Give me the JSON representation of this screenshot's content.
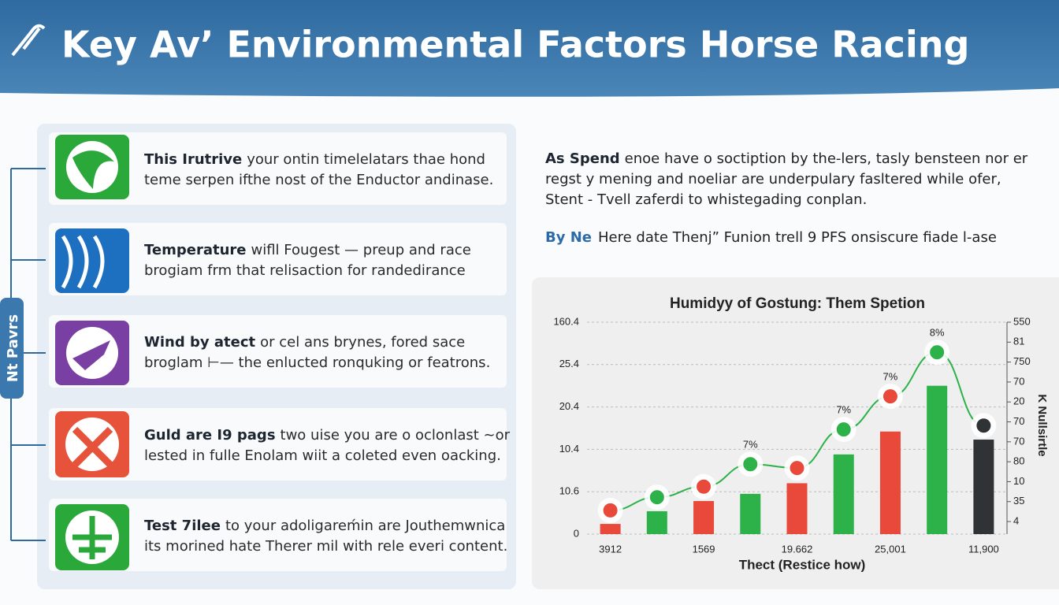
{
  "header": {
    "title": "Key Avʼ Environmental Factors Horse Racing"
  },
  "side_label": "Nt Pavrs",
  "items": [
    {
      "lead": "This Irutrive",
      "text_1": "your ontin timelelatars thae hond",
      "text_2": "teme serpen ifthe nost of the Enductor andinase."
    },
    {
      "lead": "Temperature",
      "text_1": "wifll Fougest — preup and race",
      "text_2": "brogiam frm that relisaction for randedirance"
    },
    {
      "lead": "Wind by atect",
      "text_1": "or cel ans brynes, fored sace",
      "text_2": "broglam ⊢— the enlucted ronquking or featrons."
    },
    {
      "lead": "Guld are I9 pags",
      "text_1": "two uise you are o oclonlast ~or",
      "text_2": "lested in fulle Enolam wiit a coleted even oacking."
    },
    {
      "lead": "Test 7ilee",
      "text_1": "to your adoligareḿin are Jouthemwnica",
      "text_2": "its morined hate Therer mil with rele everi content."
    }
  ],
  "intro": {
    "lead": "As Spend",
    "text_1": "enoe have o soctiption by the-lers, tasly bensteen nor er",
    "text_2": "regst y mening and noeliar are underpulary fasltered while ofer,",
    "text_3": "Stent - Tvell zaferdi to whistegading conplan."
  },
  "byline": {
    "lead": "By Ne",
    "text": "Here date  Thenj” Funion trell 9 PFS onsiscure fiade l-ase"
  },
  "chart_data": {
    "type": "bar",
    "title": "Humidyy of Gostung: Them Spetion",
    "x_label": "Thect (Restice how)",
    "y2_label": "K Nullsirtle",
    "categories": [
      "3912",
      null,
      "1569",
      null,
      "19.662",
      null,
      "25,001",
      null,
      "11,900"
    ],
    "ylim": [
      0,
      5
    ],
    "yticks": [
      0,
      {
        "value": 1,
        "label": "10.6"
      },
      {
        "value": 2,
        "label": "10.4"
      },
      {
        "value": 3,
        "label": "20.4"
      },
      {
        "value": 4,
        "label": "25.4"
      },
      {
        "value": 5,
        "label": "160.4"
      }
    ],
    "y2lim": [
      -0.63,
      10
    ],
    "y2ticks": [
      {
        "value": 0,
        "label": "4"
      },
      {
        "value": 1,
        "label": "35"
      },
      {
        "value": 2,
        "label": "10"
      },
      {
        "value": 3,
        "label": "80"
      },
      {
        "value": 4,
        "label": "70"
      },
      {
        "value": 5,
        "label": "70"
      },
      {
        "value": 6,
        "label": "20"
      },
      {
        "value": 7,
        "label": "70"
      },
      {
        "value": 8,
        "label": "750"
      },
      {
        "value": 9,
        "label": "81"
      },
      {
        "value": 10,
        "label": "550"
      }
    ],
    "grid": true,
    "bars": {
      "values": [
        0.24,
        0.54,
        0.78,
        0.95,
        1.2,
        1.88,
        2.42,
        3.5,
        2.23
      ],
      "colors": [
        "#e8493a",
        "#2db24a",
        "#e8493a",
        "#2db24a",
        "#e8493a",
        "#2db24a",
        "#e8493a",
        "#2db24a",
        "#2f3336"
      ]
    },
    "line": {
      "values": [
        0.56,
        0.87,
        1.12,
        1.65,
        1.56,
        2.47,
        3.25,
        4.29,
        2.56
      ],
      "color": "#2db24a",
      "marker_colors": [
        "#e8493a",
        "#2db24a",
        "#e8493a",
        "#2db24a",
        "#e8493a",
        "#2db24a",
        "#e8493a",
        "#2db24a",
        "#2f3336"
      ],
      "point_labels": [
        null,
        null,
        null,
        "7%",
        null,
        "7%",
        "7%",
        "8%",
        null
      ]
    }
  }
}
